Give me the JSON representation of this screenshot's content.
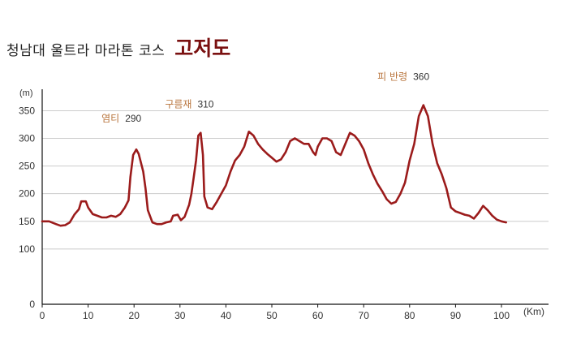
{
  "title": {
    "main": "청남대 울트라 마라톤 코스",
    "accent": "고저도"
  },
  "colors": {
    "line": "#9b1b1b",
    "accent": "#7a1010",
    "peak_label": "#b8743c",
    "grid": "#cccccc",
    "axis": "#111111"
  },
  "chart_data": {
    "type": "line",
    "ylabel": "(m)",
    "xlabel": "(Km)",
    "xlim": [
      0,
      110
    ],
    "ylim": [
      0,
      380
    ],
    "y_ticks": [
      0,
      100,
      150,
      200,
      250,
      300,
      350
    ],
    "x_ticks": [
      0,
      10,
      20,
      30,
      40,
      50,
      60,
      70,
      80,
      90,
      100
    ],
    "grid": true,
    "annotations": [
      {
        "name": "염티",
        "value": "290",
        "x": 20,
        "y": 280
      },
      {
        "name": "구름재",
        "value": "310",
        "x": 34,
        "y": 312
      },
      {
        "name": "피 반령",
        "value": "360",
        "x": 82,
        "y": 362
      }
    ],
    "series": [
      {
        "points": [
          [
            0,
            150
          ],
          [
            1.5,
            150
          ],
          [
            3,
            145
          ],
          [
            4,
            142
          ],
          [
            5,
            143
          ],
          [
            6,
            148
          ],
          [
            7,
            162
          ],
          [
            8,
            172
          ],
          [
            8.5,
            186
          ],
          [
            9.5,
            186
          ],
          [
            10,
            175
          ],
          [
            11,
            163
          ],
          [
            12,
            160
          ],
          [
            13,
            157
          ],
          [
            14,
            157
          ],
          [
            15,
            160
          ],
          [
            16,
            158
          ],
          [
            17,
            163
          ],
          [
            18,
            175
          ],
          [
            18.8,
            188
          ],
          [
            19.2,
            230
          ],
          [
            19.8,
            270
          ],
          [
            20.5,
            280
          ],
          [
            21,
            272
          ],
          [
            22,
            240
          ],
          [
            22.5,
            210
          ],
          [
            23,
            170
          ],
          [
            24,
            148
          ],
          [
            25,
            145
          ],
          [
            26,
            145
          ],
          [
            27,
            148
          ],
          [
            28,
            150
          ],
          [
            28.5,
            160
          ],
          [
            29.5,
            162
          ],
          [
            30.2,
            152
          ],
          [
            31,
            158
          ],
          [
            32,
            180
          ],
          [
            32.5,
            200
          ],
          [
            33,
            230
          ],
          [
            33.5,
            260
          ],
          [
            34,
            305
          ],
          [
            34.5,
            310
          ],
          [
            35,
            270
          ],
          [
            35.3,
            195
          ],
          [
            36,
            175
          ],
          [
            37,
            172
          ],
          [
            38,
            185
          ],
          [
            39,
            200
          ],
          [
            40,
            215
          ],
          [
            41,
            240
          ],
          [
            42,
            260
          ],
          [
            43,
            270
          ],
          [
            44,
            285
          ],
          [
            45,
            312
          ],
          [
            46,
            305
          ],
          [
            47,
            290
          ],
          [
            48,
            280
          ],
          [
            49,
            272
          ],
          [
            50,
            265
          ],
          [
            51,
            258
          ],
          [
            52,
            262
          ],
          [
            53,
            275
          ],
          [
            54,
            295
          ],
          [
            55,
            300
          ],
          [
            56,
            295
          ],
          [
            57,
            290
          ],
          [
            58,
            290
          ],
          [
            59,
            275
          ],
          [
            59.5,
            270
          ],
          [
            60,
            285
          ],
          [
            61,
            300
          ],
          [
            62,
            300
          ],
          [
            63,
            295
          ],
          [
            64,
            275
          ],
          [
            65,
            270
          ],
          [
            66,
            290
          ],
          [
            67,
            310
          ],
          [
            68,
            305
          ],
          [
            69,
            295
          ],
          [
            70,
            280
          ],
          [
            71,
            255
          ],
          [
            72,
            235
          ],
          [
            73,
            218
          ],
          [
            74,
            205
          ],
          [
            75,
            190
          ],
          [
            76,
            182
          ],
          [
            77,
            185
          ],
          [
            78,
            200
          ],
          [
            79,
            220
          ],
          [
            80,
            260
          ],
          [
            81,
            290
          ],
          [
            82,
            340
          ],
          [
            83,
            360
          ],
          [
            84,
            340
          ],
          [
            85,
            290
          ],
          [
            86,
            255
          ],
          [
            87,
            235
          ],
          [
            88,
            210
          ],
          [
            89,
            175
          ],
          [
            90,
            168
          ],
          [
            91,
            165
          ],
          [
            92,
            162
          ],
          [
            93,
            160
          ],
          [
            94,
            155
          ],
          [
            95,
            165
          ],
          [
            96,
            178
          ],
          [
            97,
            170
          ],
          [
            98,
            160
          ],
          [
            99,
            153
          ],
          [
            100,
            150
          ],
          [
            101,
            148
          ]
        ]
      }
    ]
  }
}
